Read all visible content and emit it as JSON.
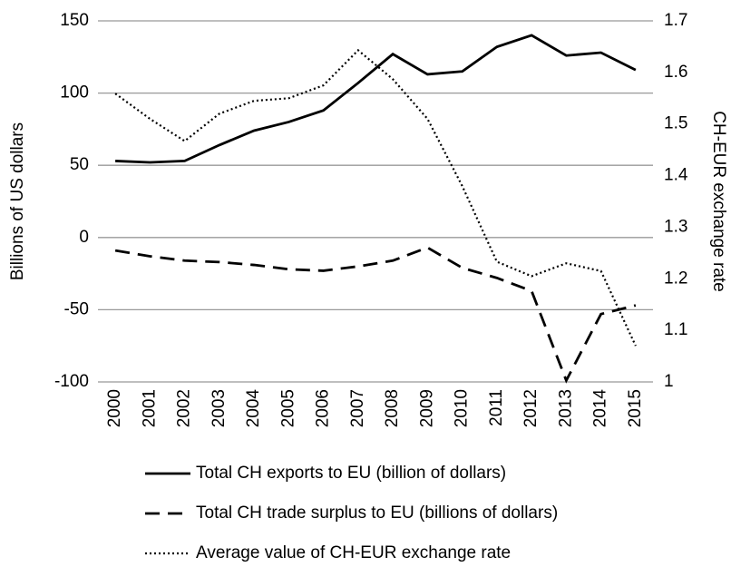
{
  "chart_data": {
    "type": "line",
    "categories": [
      "2000",
      "2001",
      "2002",
      "2003",
      "2004",
      "2005",
      "2006",
      "2007",
      "2008",
      "2009",
      "2010",
      "2011",
      "2012",
      "2013",
      "2014",
      "2015"
    ],
    "y_label": "Billions of US dollars",
    "y2_label": "CH-EUR exchange rate",
    "ylim": [
      -100,
      150
    ],
    "yticks": [
      -100,
      -50,
      0,
      50,
      100,
      150
    ],
    "y2lim": [
      1,
      1.7
    ],
    "y2ticks": [
      1,
      1.1,
      1.2,
      1.3,
      1.4,
      1.5,
      1.6,
      1.7
    ],
    "grid": true,
    "legend": "bottom",
    "series": [
      {
        "name": "Total CH exports to EU (billion of dollars)",
        "color": "#000000",
        "style": "solid",
        "values": [
          53,
          52,
          53,
          64,
          74,
          80,
          88,
          107,
          127,
          113,
          115,
          132,
          140,
          126,
          128,
          116
        ]
      },
      {
        "name": "Total CH trade surplus to EU (billions of dollars)",
        "color": "#000000",
        "style": "dashed",
        "values": [
          -9,
          -13,
          -16,
          -17,
          -19,
          -22,
          -23,
          -20,
          -16,
          -7,
          -21,
          -28,
          -37,
          -99,
          -53,
          -47
        ]
      },
      {
        "name": "Average value of CH-EUR exchange rate",
        "color": "#000000",
        "style": "dotted",
        "axis": "y2",
        "values": [
          1.559,
          1.51,
          1.467,
          1.52,
          1.545,
          1.55,
          1.575,
          1.643,
          1.587,
          1.51,
          1.38,
          1.233,
          1.205,
          1.23,
          1.215,
          1.07
        ]
      }
    ]
  }
}
